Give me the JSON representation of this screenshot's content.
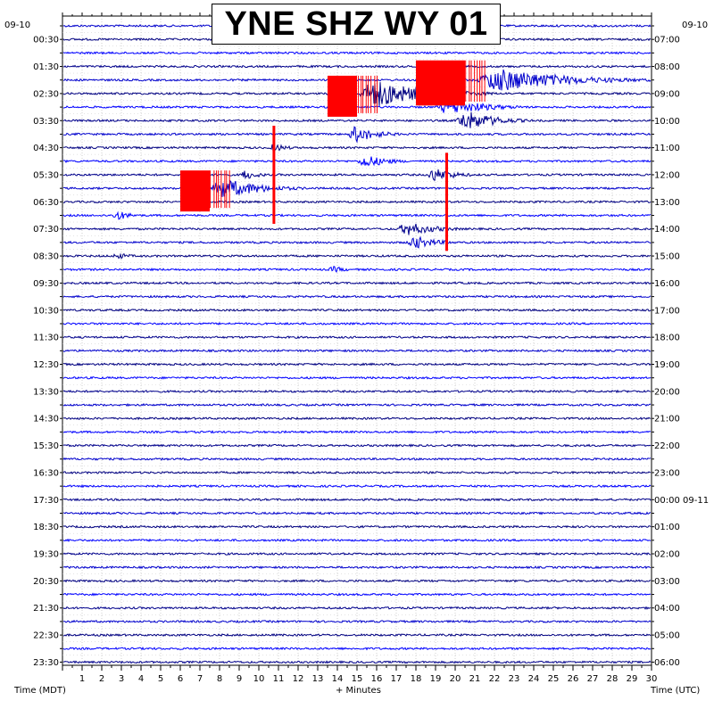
{
  "chart_data": {
    "type": "line",
    "title": "YNE SHZ WY 01",
    "xlabel": "+ Minutes",
    "left_axis_label": "Time (MDT)",
    "right_axis_label": "Time (UTC)",
    "left_date": "09-10",
    "right_date": "09-10",
    "xlim": [
      0,
      30
    ],
    "x_ticks": [
      "1",
      "2",
      "3",
      "4",
      "5",
      "6",
      "7",
      "8",
      "9",
      "10",
      "11",
      "12",
      "13",
      "14",
      "15",
      "16",
      "17",
      "18",
      "19",
      "20",
      "21",
      "22",
      "23",
      "24",
      "25",
      "26",
      "27",
      "28",
      "29",
      "30"
    ],
    "left_ticks": [
      "00:30",
      "01:30",
      "02:30",
      "03:30",
      "04:30",
      "05:30",
      "06:30",
      "07:30",
      "08:30",
      "09:30",
      "10:30",
      "11:30",
      "12:30",
      "13:30",
      "14:30",
      "15:30",
      "16:30",
      "17:30",
      "18:30",
      "19:30",
      "20:30",
      "21:30",
      "22:30",
      "23:30"
    ],
    "right_ticks": [
      "07:00",
      "08:00",
      "09:00",
      "10:00",
      "11:00",
      "12:00",
      "13:00",
      "14:00",
      "15:00",
      "16:00",
      "17:00",
      "18:00",
      "19:00",
      "20:00",
      "21:00",
      "22:00",
      "23:00",
      "00:00 09-11",
      "01:00",
      "02:00",
      "03:00",
      "04:00",
      "05:00",
      "06:00"
    ],
    "trace_colors": [
      "#0000cc",
      "#000080",
      "#0000ff",
      "#00008b"
    ],
    "clipped_color": "#ff0000",
    "events": [
      {
        "row": 1,
        "minute": 10.5,
        "amplitude": 3,
        "duration": 1.5
      },
      {
        "row": 4,
        "minute": 18,
        "amplitude": 22,
        "duration": 2.5,
        "clipped": true
      },
      {
        "row": 4,
        "minute": 21,
        "amplitude": 14,
        "duration": 9
      },
      {
        "row": 5,
        "minute": 13.5,
        "amplitude": 20,
        "duration": 1.5,
        "clipped": true
      },
      {
        "row": 5,
        "minute": 15,
        "amplitude": 16,
        "duration": 7
      },
      {
        "row": 6,
        "minute": 19,
        "amplitude": 10,
        "duration": 5
      },
      {
        "row": 7,
        "minute": 20,
        "amplitude": 12,
        "duration": 4
      },
      {
        "row": 8,
        "minute": 14.5,
        "amplitude": 10,
        "duration": 3
      },
      {
        "row": 9,
        "minute": 10.5,
        "amplitude": 5,
        "duration": 2
      },
      {
        "row": 10,
        "minute": 15,
        "amplitude": 8,
        "duration": 3
      },
      {
        "row": 11,
        "minute": 9,
        "amplitude": 6,
        "duration": 2
      },
      {
        "row": 11,
        "minute": 18.5,
        "amplitude": 8,
        "duration": 3
      },
      {
        "row": 12,
        "minute": 6,
        "amplitude": 20,
        "duration": 1.5,
        "clipped": true
      },
      {
        "row": 12,
        "minute": 7.5,
        "amplitude": 12,
        "duration": 5
      },
      {
        "row": 14,
        "minute": 2.5,
        "amplitude": 6,
        "duration": 2
      },
      {
        "row": 15,
        "minute": 17,
        "amplitude": 8,
        "duration": 4
      },
      {
        "row": 16,
        "minute": 17.5,
        "amplitude": 8,
        "duration": 3
      },
      {
        "row": 17,
        "minute": 2.5,
        "amplitude": 4,
        "duration": 2
      },
      {
        "row": 18,
        "minute": 13.5,
        "amplitude": 4,
        "duration": 2
      },
      {
        "row": 11,
        "minute": 10.7,
        "amplitude": 55,
        "duration": 0.2,
        "clipped": true,
        "spike": true
      },
      {
        "row": 13,
        "minute": 19.5,
        "amplitude": 55,
        "duration": 0.2,
        "clipped": true,
        "spike": true
      }
    ]
  }
}
